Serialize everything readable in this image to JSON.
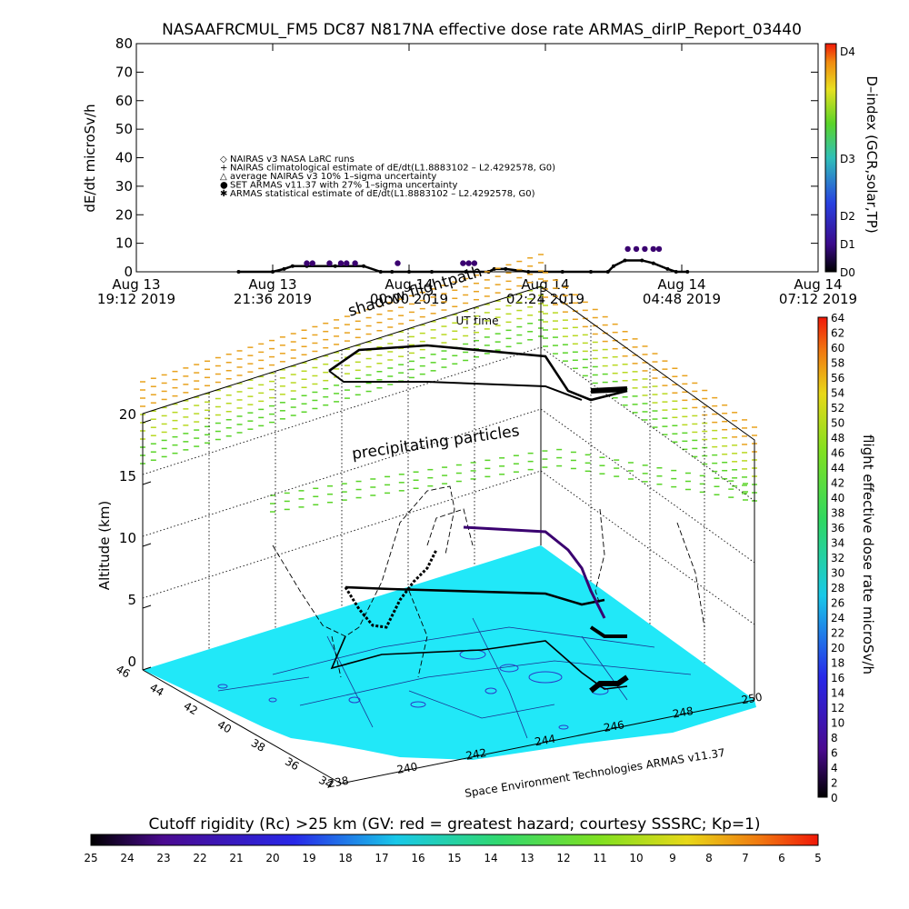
{
  "title": "NASAAFRCMUL_FM5 DC87 N817NA effective dose rate ARMAS_dirIP_Report_03440",
  "chart_data": [
    {
      "type": "scatter",
      "ylabel": "dE/dt microSv/h",
      "ylim": [
        0,
        80
      ],
      "yticks": [
        "0",
        "10",
        "20",
        "30",
        "40",
        "50",
        "60",
        "70",
        "80"
      ],
      "xticks": [
        {
          "line1": "Aug 13",
          "line2": "19:12 2019"
        },
        {
          "line1": "Aug 13",
          "line2": "21:36 2019"
        },
        {
          "line1": "Aug 14",
          "line2": "00:00 2019"
        },
        {
          "line1": "Aug 14",
          "line2": "02:24 2019"
        },
        {
          "line1": "Aug 14",
          "line2": "04:48 2019"
        },
        {
          "line1": "Aug 14",
          "line2": "07:12 2019"
        }
      ],
      "x_hours": [
        0,
        2.4,
        4.8,
        7.2,
        9.6,
        12.0
      ],
      "xlabel": "UT time",
      "legend": [
        {
          "symbol": "◇",
          "text": "NAIRAS v3 NASA LaRC runs"
        },
        {
          "symbol": "+",
          "text": "NAIRAS climatological estimate of dE/dt(L1.8883102 – L2.4292578, G0)"
        },
        {
          "symbol": "△",
          "text": "average NAIRAS v3 10% 1–sigma uncertainty"
        },
        {
          "symbol": "●",
          "text": "SET ARMAS v11.37 with 27% 1–sigma uncertainty"
        },
        {
          "symbol": "✱",
          "text": "ARMAS statistical estimate of dE/dt(L1.8883102 – L2.4292578, G0)"
        }
      ],
      "legend_position": "center-left",
      "series": [
        {
          "color": "#000000",
          "x": [
            1.8,
            2.4,
            2.6,
            2.75,
            3.0,
            3.5,
            4.0,
            4.3,
            4.5,
            4.8,
            5.2,
            5.8,
            6.2,
            6.3,
            6.5,
            6.9,
            7.5,
            8.0,
            8.3,
            8.4,
            8.6,
            8.9,
            9.1,
            9.35,
            9.5,
            9.7
          ],
          "y": [
            0,
            0,
            1,
            2,
            2,
            2,
            2,
            0,
            0,
            0,
            0,
            0,
            0,
            1,
            1,
            0,
            0,
            0,
            0,
            2,
            4,
            4,
            3,
            1,
            0,
            0
          ]
        },
        {
          "color": "#3a0070",
          "x": [
            3.0,
            3.1,
            3.4,
            3.6,
            3.7,
            3.85,
            4.6,
            5.75,
            5.85,
            5.95,
            8.65,
            8.8,
            8.95,
            9.1,
            9.2
          ],
          "y": [
            3,
            3,
            3,
            3,
            3,
            3,
            3,
            3,
            3,
            3,
            8,
            8,
            8,
            8,
            8
          ]
        }
      ],
      "right_axis": {
        "label": "D–index (GCR,solar,TP)",
        "ticks": [
          "D0",
          "D1",
          "D2",
          "D3",
          "D4"
        ]
      }
    },
    {
      "type": "scatter",
      "ylabel": "Altitude (km)",
      "zticks": [
        "0",
        "5",
        "10",
        "15",
        "20"
      ],
      "lat_ticks": [
        "46",
        "44",
        "42",
        "40",
        "38",
        "36",
        "34"
      ],
      "lon_ticks": [
        "238",
        "240",
        "242",
        "244",
        "246",
        "248",
        "250"
      ],
      "annotations": [
        "shadow flightpath",
        "precipitating particles"
      ],
      "footer": "Space Environment Technologies ARMAS v11.37",
      "colorbar": {
        "label": "flight effective dose rate microSv/h",
        "ticks": [
          "0",
          "2",
          "4",
          "6",
          "8",
          "10",
          "12",
          "14",
          "16",
          "18",
          "20",
          "22",
          "24",
          "26",
          "28",
          "30",
          "32",
          "34",
          "36",
          "38",
          "40",
          "42",
          "44",
          "46",
          "48",
          "50",
          "52",
          "54",
          "56",
          "58",
          "60",
          "62",
          "64"
        ]
      },
      "flight_tracks": [
        {
          "name_bind": "",
          "color": "#000000",
          "alt_km": 20
        },
        {
          "color": "#000000",
          "alt_km": 5.2
        },
        {
          "color": "#3a0070",
          "alt_km": 10.8
        }
      ]
    }
  ],
  "cutoff_bar": {
    "title": "Cutoff rigidity (Rc) >25 km (GV: red = greatest hazard; courtesy SSSRC; Kp=1)",
    "ticks": [
      "25",
      "24",
      "23",
      "22",
      "21",
      "20",
      "19",
      "18",
      "17",
      "16",
      "15",
      "14",
      "13",
      "12",
      "11",
      "10",
      "9",
      "8",
      "7",
      "6",
      "5"
    ]
  },
  "colors": {
    "ground": "#21e8f8",
    "contour": "#2a3ac8",
    "track_black": "#000000",
    "track_purple": "#3a0070",
    "particles_top": "#e8a21e",
    "particles_mid": "#b8d820",
    "particles_low": "#5ad428"
  }
}
